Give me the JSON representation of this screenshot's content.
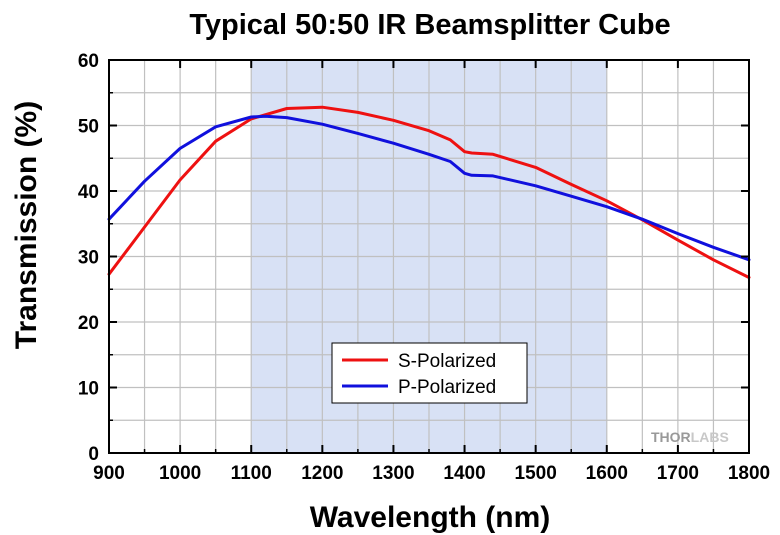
{
  "chart_data": {
    "type": "line",
    "title": "Typical 50:50 IR Beamsplitter Cube",
    "xlabel": "Wavelength (nm)",
    "ylabel": "Transmission (%)",
    "xlim": [
      900,
      1800
    ],
    "ylim": [
      0,
      60
    ],
    "xticks": [
      900,
      1000,
      1100,
      1200,
      1300,
      1400,
      1500,
      1600,
      1700,
      1800
    ],
    "yticks": [
      0,
      10,
      20,
      30,
      40,
      50,
      60
    ],
    "grid": true,
    "highlight_band": {
      "x_range": [
        1100,
        1600
      ],
      "color": "#d8e1f5"
    },
    "legend_position": "lower-center",
    "series": [
      {
        "name": "S-Polarized",
        "color": "#ee1111",
        "x": [
          900,
          950,
          1000,
          1050,
          1100,
          1150,
          1200,
          1250,
          1300,
          1350,
          1380,
          1400,
          1410,
          1440,
          1500,
          1550,
          1600,
          1650,
          1700,
          1750,
          1800
        ],
        "y": [
          27.3,
          34.5,
          41.7,
          47.6,
          51.0,
          52.6,
          52.8,
          52.0,
          50.8,
          49.2,
          47.8,
          46.0,
          45.8,
          45.6,
          43.6,
          41.0,
          38.5,
          35.6,
          32.5,
          29.5,
          26.8
        ]
      },
      {
        "name": "P-Polarized",
        "color": "#1010dd",
        "x": [
          900,
          950,
          1000,
          1050,
          1100,
          1120,
          1150,
          1200,
          1250,
          1300,
          1350,
          1380,
          1400,
          1410,
          1440,
          1500,
          1550,
          1600,
          1650,
          1700,
          1750,
          1800
        ],
        "y": [
          35.7,
          41.5,
          46.5,
          49.8,
          51.3,
          51.4,
          51.2,
          50.2,
          48.8,
          47.3,
          45.6,
          44.5,
          42.7,
          42.4,
          42.3,
          40.8,
          39.2,
          37.6,
          35.7,
          33.5,
          31.4,
          29.5
        ]
      }
    ]
  },
  "watermark": {
    "text_dark": "THOR",
    "text_light": "LABS",
    "color_dark": "#999999",
    "color_light": "#c8c8c8"
  }
}
